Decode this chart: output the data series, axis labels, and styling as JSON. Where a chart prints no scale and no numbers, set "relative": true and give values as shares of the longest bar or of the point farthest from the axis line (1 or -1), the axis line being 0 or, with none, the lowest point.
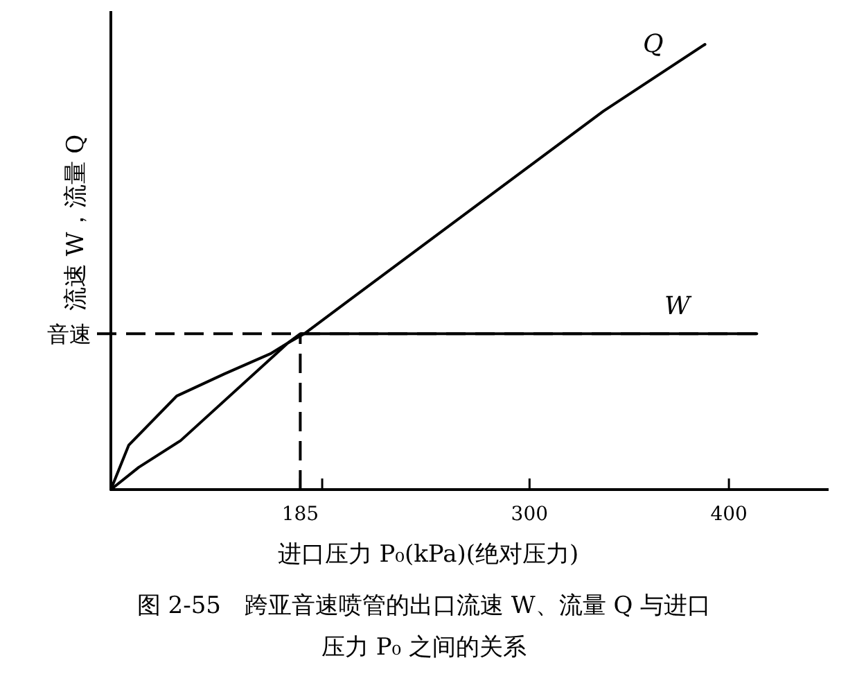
{
  "chart_data": {
    "type": "line",
    "title": "图 2-55　跨亚音速喷管的出口流速 W、流量 Q 与进口压力 P₀ 之间的关系",
    "xlabel": "进口压力 P₀(kPa)(绝对压力)",
    "ylabel": "流速 W，流量 Q",
    "relative": true,
    "xlim": [
      90,
      450
    ],
    "xticks": [
      185,
      {
        "value": 196,
        "label": null
      },
      300,
      400
    ],
    "ref_lines": [
      {
        "axis": "y",
        "value": 0.35,
        "label": "音速",
        "line_style": "dashed",
        "color": "#000000"
      },
      {
        "axis": "x",
        "value": 185,
        "label": null,
        "line_style": "dashed",
        "color": "#000000"
      }
    ],
    "series": [
      {
        "name": "Q",
        "color": "#000000",
        "x": [
          90,
          104,
          125,
          179,
          187,
          337,
          388
        ],
        "values": [
          0,
          0.05,
          0.11,
          0.33,
          0.35,
          0.85,
          1
        ]
      },
      {
        "name": "W",
        "color": "#000000",
        "x": [
          90,
          99,
          123,
          147,
          170,
          179,
          185,
          414
        ],
        "values": [
          0,
          0.1,
          0.21,
          0.26,
          0.305,
          0.33,
          0.35,
          0.35
        ]
      }
    ]
  }
}
